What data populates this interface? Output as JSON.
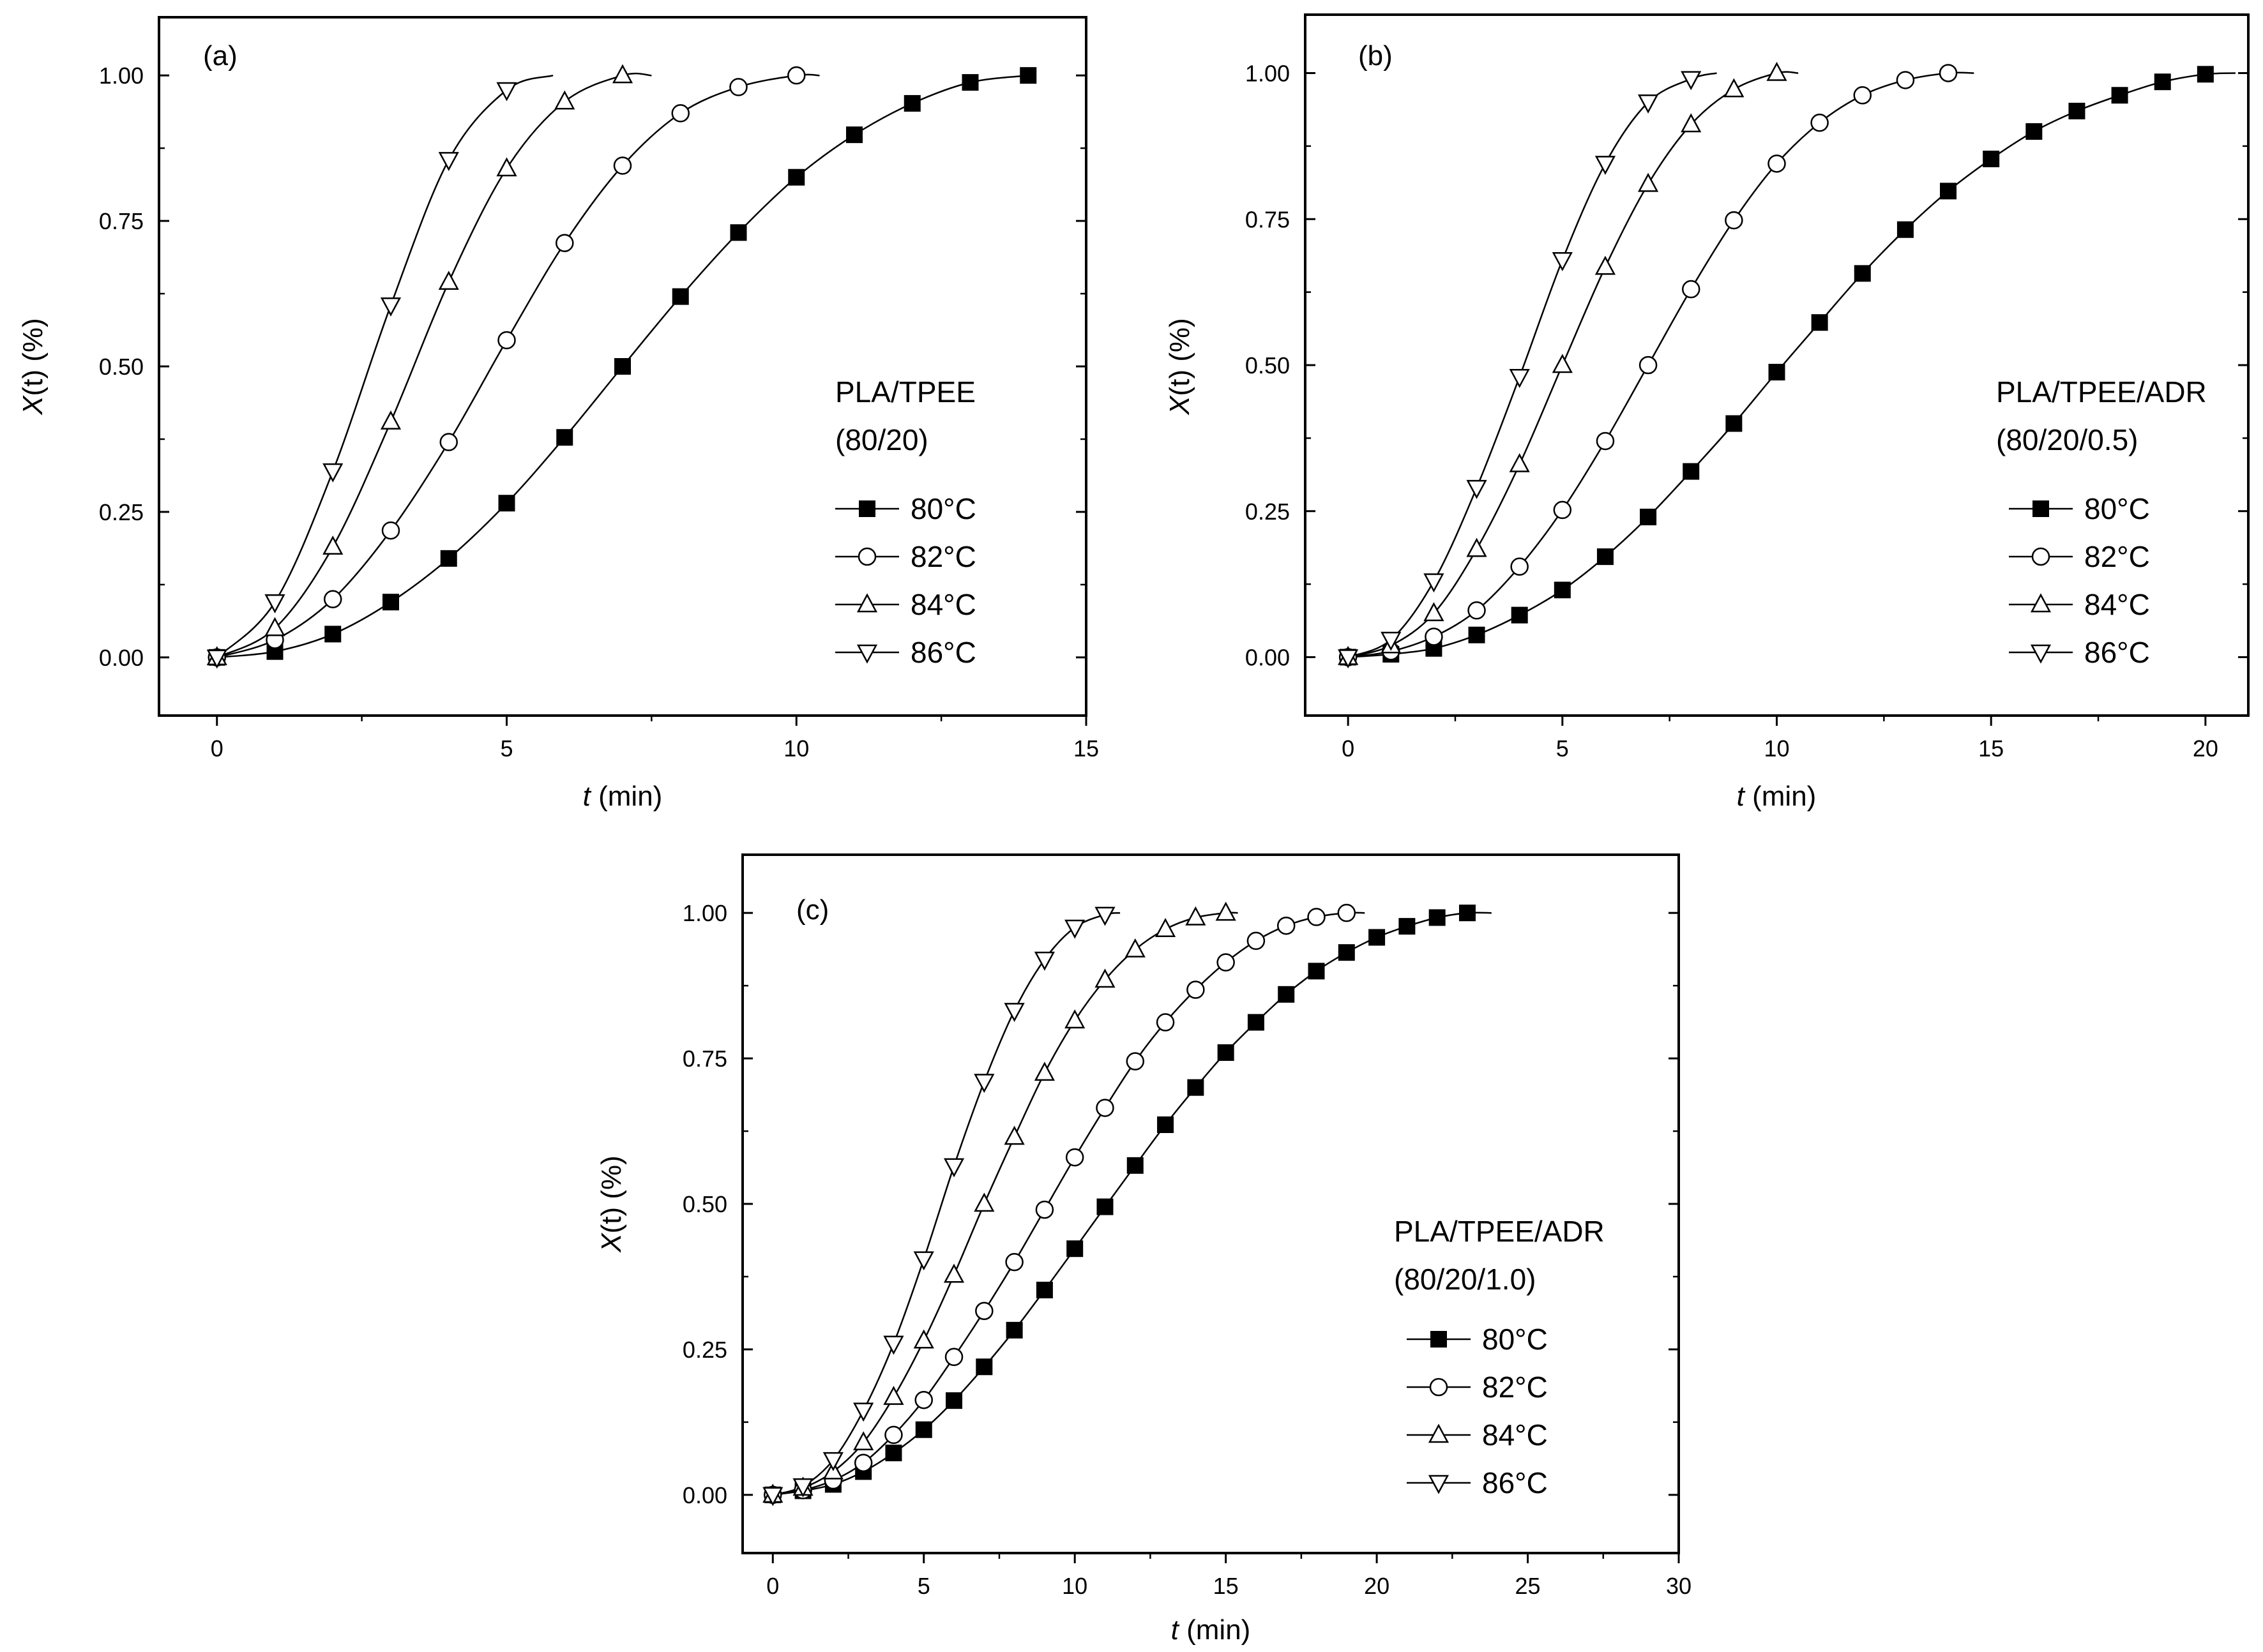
{
  "chart_data": [
    {
      "type": "line",
      "panel_label": "(a)",
      "sample_line1": "PLA/TPEE",
      "sample_line2": "(80/20)",
      "xlabel_italic": "t",
      "xlabel_rest": " (min)",
      "ylabel_italic": "X",
      "ylabel_rest": "(t) (%)",
      "xlim": [
        -1,
        15
      ],
      "ylim": [
        -0.1,
        1.1
      ],
      "xticks": [
        0,
        5,
        10,
        15
      ],
      "yticks": [
        0.0,
        0.25,
        0.5,
        0.75,
        1.0
      ],
      "ytick_labels": [
        "0.00",
        "0.25",
        "0.50",
        "0.75",
        "1.00"
      ],
      "series": [
        {
          "name": "80°C",
          "temp": "80",
          "unit": "°C",
          "marker": "square-filled",
          "curve_end": 14,
          "x": [
            0,
            1,
            2,
            3,
            4,
            5,
            6,
            7,
            8,
            9,
            10,
            11,
            12,
            13,
            14
          ],
          "y": [
            0,
            0.01,
            0.04,
            0.095,
            0.17,
            0.265,
            0.378,
            0.5,
            0.62,
            0.73,
            0.825,
            0.898,
            0.952,
            0.988,
            1.0
          ]
        },
        {
          "name": "82°C",
          "temp": "82",
          "unit": "°C",
          "marker": "circle-open",
          "curve_end": 10.4,
          "x": [
            0,
            1,
            2,
            3,
            4,
            5,
            6,
            7,
            8,
            9,
            10
          ],
          "y": [
            0,
            0.03,
            0.1,
            0.218,
            0.37,
            0.545,
            0.712,
            0.845,
            0.935,
            0.98,
            1.0
          ]
        },
        {
          "name": "84°C",
          "temp": "84",
          "unit": "°C",
          "marker": "triangle-up-open",
          "curve_end": 7.5,
          "x": [
            0,
            1,
            2,
            3,
            4,
            5,
            6,
            7
          ],
          "y": [
            0,
            0.05,
            0.19,
            0.405,
            0.645,
            0.84,
            0.955,
            1.0
          ]
        },
        {
          "name": "86°C",
          "temp": "86",
          "unit": "°C",
          "marker": "triangle-down-open",
          "curve_end": 5.8,
          "x": [
            0,
            1,
            2,
            3,
            4,
            5
          ],
          "y": [
            0,
            0.095,
            0.32,
            0.605,
            0.855,
            0.975
          ]
        }
      ]
    },
    {
      "type": "line",
      "panel_label": "(b)",
      "sample_line1": "PLA/TPEE/ADR",
      "sample_line2": "(80/20/0.5)",
      "xlabel_italic": "t",
      "xlabel_rest": " (min)",
      "ylabel_italic": "X",
      "ylabel_rest": "(t) (%)",
      "xlim": [
        -1,
        21
      ],
      "ylim": [
        -0.1,
        1.1
      ],
      "xticks": [
        0,
        5,
        10,
        15,
        20
      ],
      "yticks": [
        0.0,
        0.25,
        0.5,
        0.75,
        1.0
      ],
      "ytick_labels": [
        "0.00",
        "0.25",
        "0.50",
        "0.75",
        "1.00"
      ],
      "series": [
        {
          "name": "80°C",
          "temp": "80",
          "unit": "°C",
          "marker": "square-filled",
          "curve_end": 20.7,
          "x": [
            0,
            1,
            2,
            3,
            4,
            5,
            6,
            7,
            8,
            9,
            10,
            11,
            12,
            13,
            14,
            15,
            16,
            17,
            18,
            19,
            20
          ],
          "y": [
            0,
            0.005,
            0.015,
            0.038,
            0.072,
            0.115,
            0.172,
            0.24,
            0.318,
            0.4,
            0.488,
            0.573,
            0.657,
            0.732,
            0.798,
            0.853,
            0.9,
            0.935,
            0.962,
            0.985,
            0.998
          ]
        },
        {
          "name": "82°C",
          "temp": "82",
          "unit": "°C",
          "marker": "circle-open",
          "curve_end": 14.6,
          "x": [
            0,
            1,
            2,
            3,
            4,
            5,
            6,
            7,
            8,
            9,
            10,
            11,
            12,
            13,
            14
          ],
          "y": [
            0,
            0.01,
            0.035,
            0.08,
            0.155,
            0.252,
            0.37,
            0.5,
            0.63,
            0.748,
            0.845,
            0.915,
            0.962,
            0.988,
            1.0
          ]
        },
        {
          "name": "84°C",
          "temp": "84",
          "unit": "°C",
          "marker": "triangle-up-open",
          "curve_end": 10.5,
          "x": [
            0,
            1,
            2,
            3,
            4,
            5,
            6,
            7,
            8,
            9,
            10
          ],
          "y": [
            0,
            0.02,
            0.075,
            0.185,
            0.33,
            0.5,
            0.668,
            0.81,
            0.912,
            0.972,
            1.0
          ]
        },
        {
          "name": "86°C",
          "temp": "86",
          "unit": "°C",
          "marker": "triangle-down-open",
          "curve_end": 8.6,
          "x": [
            0,
            1,
            2,
            3,
            4,
            5,
            6,
            7,
            8
          ],
          "y": [
            0,
            0.03,
            0.13,
            0.29,
            0.48,
            0.68,
            0.845,
            0.95,
            0.99
          ]
        }
      ]
    },
    {
      "type": "line",
      "panel_label": "(c)",
      "sample_line1": "PLA/TPEE/ADR",
      "sample_line2": "(80/20/1.0)",
      "xlabel_italic": "t",
      "xlabel_rest": " (min)",
      "ylabel_italic": "X",
      "ylabel_rest": "(t) (%)",
      "xlim": [
        -1,
        30
      ],
      "ylim": [
        -0.1,
        1.1
      ],
      "xticks": [
        0,
        5,
        10,
        15,
        20,
        25,
        30
      ],
      "yticks": [
        0.0,
        0.25,
        0.5,
        0.75,
        1.0
      ],
      "ytick_labels": [
        "0.00",
        "0.25",
        "0.50",
        "0.75",
        "1.00"
      ],
      "series": [
        {
          "name": "80°C",
          "temp": "80",
          "unit": "°C",
          "marker": "square-filled",
          "curve_end": 23.8,
          "x": [
            0,
            1,
            2,
            3,
            4,
            5,
            6,
            7,
            8,
            9,
            10,
            11,
            12,
            13,
            14,
            15,
            16,
            17,
            18,
            19,
            20,
            21,
            22,
            23
          ],
          "y": [
            0,
            0.007,
            0.018,
            0.04,
            0.072,
            0.112,
            0.162,
            0.22,
            0.283,
            0.352,
            0.423,
            0.495,
            0.566,
            0.636,
            0.7,
            0.76,
            0.812,
            0.86,
            0.9,
            0.932,
            0.958,
            0.977,
            0.992,
            1.0
          ]
        },
        {
          "name": "82°C",
          "temp": "82",
          "unit": "°C",
          "marker": "circle-open",
          "curve_end": 19.6,
          "x": [
            0,
            1,
            2,
            3,
            4,
            5,
            6,
            7,
            8,
            9,
            10,
            11,
            12,
            13,
            14,
            15,
            16,
            17,
            18,
            19
          ],
          "y": [
            0,
            0.008,
            0.025,
            0.055,
            0.103,
            0.163,
            0.237,
            0.316,
            0.4,
            0.49,
            0.58,
            0.665,
            0.745,
            0.812,
            0.868,
            0.915,
            0.952,
            0.978,
            0.993,
            1.0
          ]
        },
        {
          "name": "84°C",
          "temp": "84",
          "unit": "°C",
          "marker": "triangle-up-open",
          "curve_end": 15.4,
          "x": [
            0,
            1,
            2,
            3,
            4,
            5,
            6,
            7,
            8,
            9,
            10,
            11,
            12,
            13,
            14,
            15
          ],
          "y": [
            0,
            0.012,
            0.04,
            0.09,
            0.168,
            0.265,
            0.378,
            0.5,
            0.615,
            0.725,
            0.815,
            0.885,
            0.937,
            0.972,
            0.992,
            1.0
          ]
        },
        {
          "name": "86°C",
          "temp": "86",
          "unit": "°C",
          "marker": "triangle-down-open",
          "curve_end": 11.5,
          "x": [
            0,
            1,
            2,
            3,
            4,
            5,
            6,
            7,
            8,
            9,
            10,
            11
          ],
          "y": [
            0,
            0.015,
            0.06,
            0.145,
            0.26,
            0.405,
            0.565,
            0.71,
            0.832,
            0.92,
            0.975,
            0.997
          ]
        }
      ]
    }
  ]
}
